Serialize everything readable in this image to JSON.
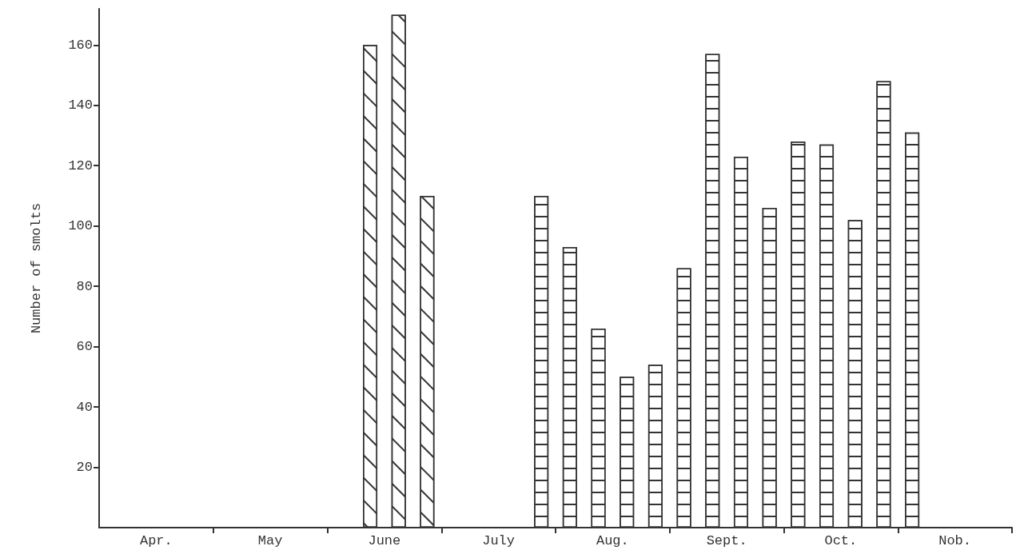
{
  "chart_data": {
    "type": "bar",
    "ylabel": "Number of smolts",
    "categories": [
      null,
      null,
      "Apr.",
      null,
      null,
      null,
      "May",
      null,
      null,
      null,
      "June",
      null,
      null,
      null,
      "July",
      null,
      null,
      null,
      "Aug.",
      null,
      null,
      null,
      "Sept.",
      null,
      null,
      null,
      "Oct.",
      null,
      null,
      null,
      "Nob.",
      null
    ],
    "series": [
      {
        "color": "#ffffff",
        "values": [
          null,
          null,
          null,
          null,
          null,
          null,
          null,
          null,
          null,
          160,
          170,
          110,
          null,
          null,
          null,
          null,
          null,
          null,
          null,
          null,
          null,
          null,
          null,
          null,
          null,
          null,
          null,
          null,
          null,
          null,
          null,
          null
        ]
      },
      {
        "color": "#ffffff",
        "values": [
          null,
          null,
          null,
          null,
          null,
          null,
          null,
          null,
          null,
          null,
          null,
          null,
          null,
          null,
          null,
          110,
          93,
          66,
          50,
          54,
          86,
          157,
          123,
          106,
          128,
          127,
          102,
          148,
          131,
          null,
          null,
          null
        ]
      }
    ],
    "ylim": [
      0,
      172
    ],
    "yticks": [
      20,
      40,
      60,
      80,
      100,
      120,
      140,
      160
    ],
    "grid": false
  }
}
